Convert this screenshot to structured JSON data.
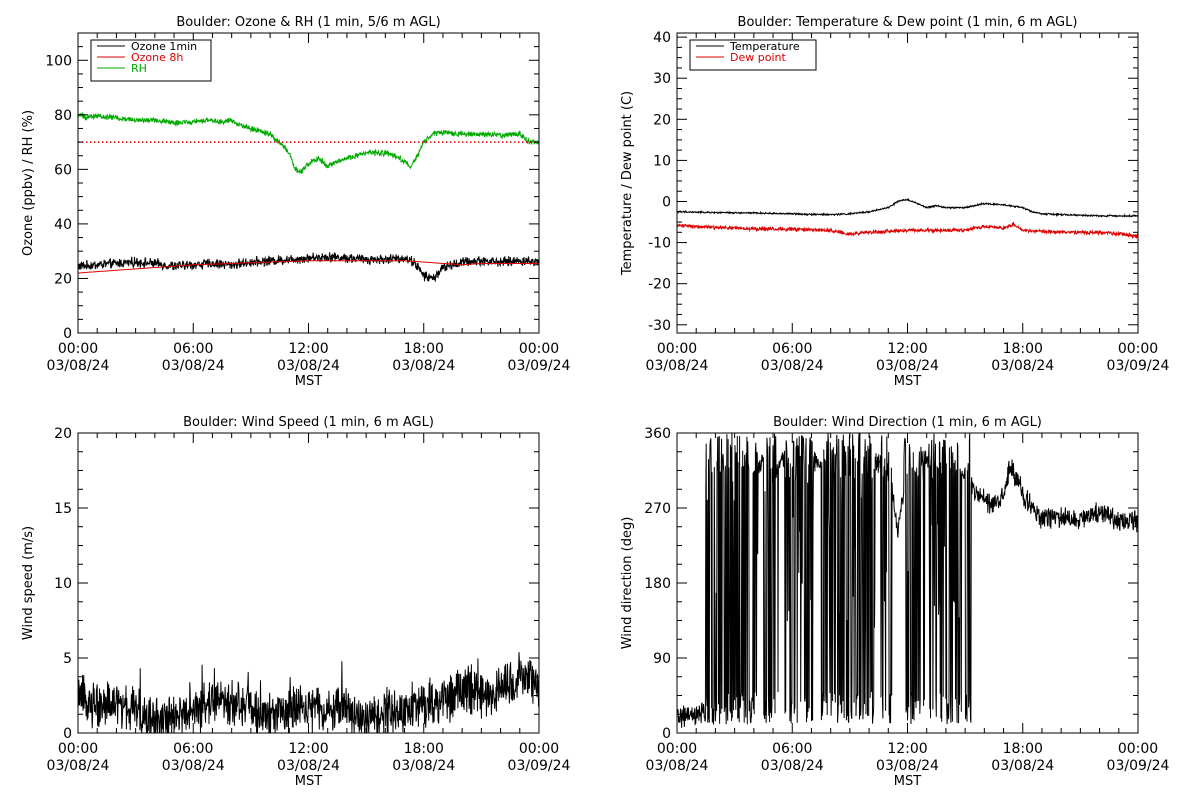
{
  "chart_data": [
    {
      "id": "ozone_rh",
      "type": "line",
      "title": "Boulder: Ozone & RH (1 min, 5/6 m AGL)",
      "ylabel": "Ozone (ppbv) / RH (%)",
      "xlabel": "MST",
      "ylim": [
        0,
        110
      ],
      "yticks": [
        0,
        20,
        40,
        60,
        80,
        100
      ],
      "xticks": [
        {
          "hour": 0,
          "time": "00:00",
          "date": "03/08/24"
        },
        {
          "hour": 6,
          "time": "06:00",
          "date": "03/08/24"
        },
        {
          "hour": 12,
          "time": "12:00",
          "date": "03/08/24"
        },
        {
          "hour": 18,
          "time": "18:00",
          "date": "03/08/24"
        },
        {
          "hour": 24,
          "time": "00:00",
          "date": "03/09/24"
        }
      ],
      "legend": {
        "placement": "top-left"
      },
      "series": [
        {
          "name": "Ozone 1min",
          "color": "#000000",
          "style": "solid",
          "noise": 1.4,
          "x": [
            0,
            1,
            2,
            3,
            4,
            5,
            6,
            7,
            8,
            9,
            10,
            11,
            12,
            13,
            14,
            15,
            16,
            17,
            17.5,
            18,
            18.5,
            19,
            19.5,
            20,
            21,
            22,
            23,
            24
          ],
          "y": [
            24.5,
            25,
            25.5,
            26,
            25.5,
            24.5,
            25,
            25.5,
            25,
            26,
            26.5,
            27,
            27.5,
            28,
            27.5,
            27,
            27,
            27.5,
            26,
            21,
            20,
            24,
            25,
            26,
            26.5,
            26,
            26.5,
            26
          ]
        },
        {
          "name": "Ozone 8h",
          "color": "#dd0000",
          "style": "solid",
          "noise": 0,
          "x": [
            0,
            2,
            4,
            6,
            8,
            10,
            12,
            14,
            16,
            17,
            18,
            19,
            20,
            21,
            22,
            23,
            24
          ],
          "y": [
            22,
            23,
            24,
            25,
            25.5,
            26,
            26.5,
            26.5,
            26.5,
            26.5,
            26,
            25.5,
            25,
            25.5,
            25.5,
            25.5,
            25.5
          ]
        },
        {
          "name": "RH",
          "color": "#00aa00",
          "style": "solid",
          "noise": 0.8,
          "x": [
            0,
            0.5,
            1,
            2,
            3,
            4,
            5,
            6,
            7,
            7.5,
            8,
            8.5,
            9,
            9.5,
            10,
            10.5,
            11,
            11.3,
            11.6,
            12,
            12.5,
            13,
            13.5,
            14,
            14.5,
            15,
            15.5,
            16,
            16.5,
            17,
            17.3,
            17.6,
            18,
            18.5,
            19,
            20,
            21,
            22,
            23,
            23.5,
            24
          ],
          "y": [
            80,
            79,
            79.5,
            79,
            78,
            78,
            77,
            77.5,
            78,
            77.5,
            78,
            76,
            75,
            74,
            73,
            70,
            66,
            60,
            59,
            62,
            64,
            61,
            63,
            64,
            65,
            66,
            66,
            66,
            65,
            63,
            61,
            64,
            70,
            73,
            73.5,
            73,
            73,
            72.5,
            73,
            70,
            70
          ]
        },
        {
          "name": "",
          "color": "#dd0000",
          "style": "dotted",
          "noise": 0,
          "x": [
            0,
            24
          ],
          "y": [
            70,
            70
          ]
        }
      ]
    },
    {
      "id": "temp_dew",
      "type": "line",
      "title": "Boulder: Temperature & Dew point (1 min, 6 m AGL)",
      "ylabel": "Temperature / Dew point (C)",
      "xlabel": "MST",
      "ylim": [
        -32,
        41
      ],
      "yticks": [
        -30,
        -20,
        -10,
        0,
        10,
        20,
        30,
        40
      ],
      "xticks": [
        {
          "hour": 0,
          "time": "00:00",
          "date": "03/08/24"
        },
        {
          "hour": 6,
          "time": "06:00",
          "date": "03/08/24"
        },
        {
          "hour": 12,
          "time": "12:00",
          "date": "03/08/24"
        },
        {
          "hour": 18,
          "time": "18:00",
          "date": "03/08/24"
        },
        {
          "hour": 24,
          "time": "00:00",
          "date": "03/09/24"
        }
      ],
      "legend": {
        "placement": "top-left"
      },
      "series": [
        {
          "name": "Temperature",
          "color": "#000000",
          "style": "solid",
          "noise": 0.15,
          "x": [
            0,
            2,
            4,
            6,
            8,
            9,
            10,
            11,
            11.5,
            12,
            12.5,
            13,
            13.5,
            14,
            15,
            16,
            17,
            18,
            18.5,
            19,
            20,
            22,
            24
          ],
          "y": [
            -2.5,
            -2.7,
            -2.8,
            -3,
            -3.2,
            -3,
            -2.5,
            -1.5,
            0,
            0.5,
            -0.5,
            -1.5,
            -1,
            -1.5,
            -1.5,
            -0.5,
            -0.8,
            -1.5,
            -2.5,
            -3,
            -3.2,
            -3.5,
            -3.5
          ]
        },
        {
          "name": "Dew point",
          "color": "#dd0000",
          "style": "solid",
          "noise": 0.35,
          "x": [
            0,
            1,
            3,
            6,
            8,
            9,
            10,
            12,
            14,
            15,
            16,
            17,
            17.5,
            18,
            19,
            20,
            22,
            23,
            24
          ],
          "y": [
            -5.8,
            -6.2,
            -6.5,
            -6.8,
            -7,
            -8,
            -7.5,
            -7,
            -7,
            -7,
            -6,
            -6.5,
            -5.5,
            -7,
            -7.3,
            -7.5,
            -7.5,
            -7.8,
            -8.5
          ]
        }
      ]
    },
    {
      "id": "wind_speed",
      "type": "line",
      "title": "Boulder: Wind Speed (1 min, 6 m AGL)",
      "ylabel": "Wind speed (m/s)",
      "xlabel": "MST",
      "ylim": [
        0,
        20
      ],
      "yticks": [
        0,
        5,
        10,
        15,
        20
      ],
      "xticks": [
        {
          "hour": 0,
          "time": "00:00",
          "date": "03/08/24"
        },
        {
          "hour": 6,
          "time": "06:00",
          "date": "03/08/24"
        },
        {
          "hour": 12,
          "time": "12:00",
          "date": "03/08/24"
        },
        {
          "hour": 18,
          "time": "18:00",
          "date": "03/08/24"
        },
        {
          "hour": 24,
          "time": "00:00",
          "date": "03/09/24"
        }
      ],
      "series": [
        {
          "name": "",
          "color": "#000000",
          "style": "solid",
          "noise": 1.2,
          "x": [
            0,
            1,
            2,
            3,
            4,
            5,
            6,
            7,
            8,
            9,
            10,
            11,
            12,
            13,
            14,
            15,
            16,
            17,
            18,
            19,
            20,
            21,
            22,
            23,
            23.5,
            24
          ],
          "y": [
            2.2,
            2,
            1.8,
            1.5,
            0.8,
            1,
            1.5,
            2,
            2,
            1.6,
            1.2,
            1.5,
            1.7,
            1.8,
            1.7,
            0.8,
            1.2,
            1.4,
            1.8,
            2.2,
            2.8,
            2.6,
            2.8,
            3.5,
            3.8,
            3
          ]
        }
      ]
    },
    {
      "id": "wind_dir",
      "type": "line",
      "title": "Boulder: Wind Direction (1 min, 6 m AGL)",
      "ylabel": "Wind direction (deg)",
      "xlabel": "MST",
      "ylim": [
        0,
        360
      ],
      "yticks": [
        0,
        90,
        180,
        270,
        360
      ],
      "xticks": [
        {
          "hour": 0,
          "time": "00:00",
          "date": "03/08/24"
        },
        {
          "hour": 6,
          "time": "06:00",
          "date": "03/08/24"
        },
        {
          "hour": 12,
          "time": "12:00",
          "date": "03/08/24"
        },
        {
          "hour": 18,
          "time": "18:00",
          "date": "03/08/24"
        },
        {
          "hour": 24,
          "time": "00:00",
          "date": "03/09/24"
        }
      ],
      "series": [
        {
          "name": "",
          "color": "#000000",
          "style": "solid",
          "noise": 10,
          "wrap_segments": [
            [
              1.5,
              4.2
            ],
            [
              4.5,
              5.3
            ],
            [
              5.6,
              7.1
            ],
            [
              7.5,
              10.3
            ],
            [
              10.6,
              11.2
            ],
            [
              11.8,
              12.9
            ],
            [
              13.1,
              14.8
            ],
            [
              15.0,
              15.3
            ]
          ],
          "x": [
            0,
            1,
            1.5,
            2,
            3,
            4,
            5,
            6,
            7,
            8,
            9,
            10,
            11,
            11.5,
            12,
            13,
            14,
            15,
            15.5,
            16,
            16.5,
            17,
            17.3,
            17.8,
            18,
            18.5,
            19,
            20,
            21,
            22,
            23,
            24
          ],
          "y": [
            20,
            20,
            25,
            330,
            330,
            320,
            330,
            325,
            330,
            320,
            330,
            330,
            320,
            240,
            320,
            330,
            320,
            310,
            290,
            280,
            275,
            285,
            320,
            300,
            285,
            270,
            255,
            260,
            255,
            265,
            255,
            255
          ]
        }
      ]
    }
  ]
}
